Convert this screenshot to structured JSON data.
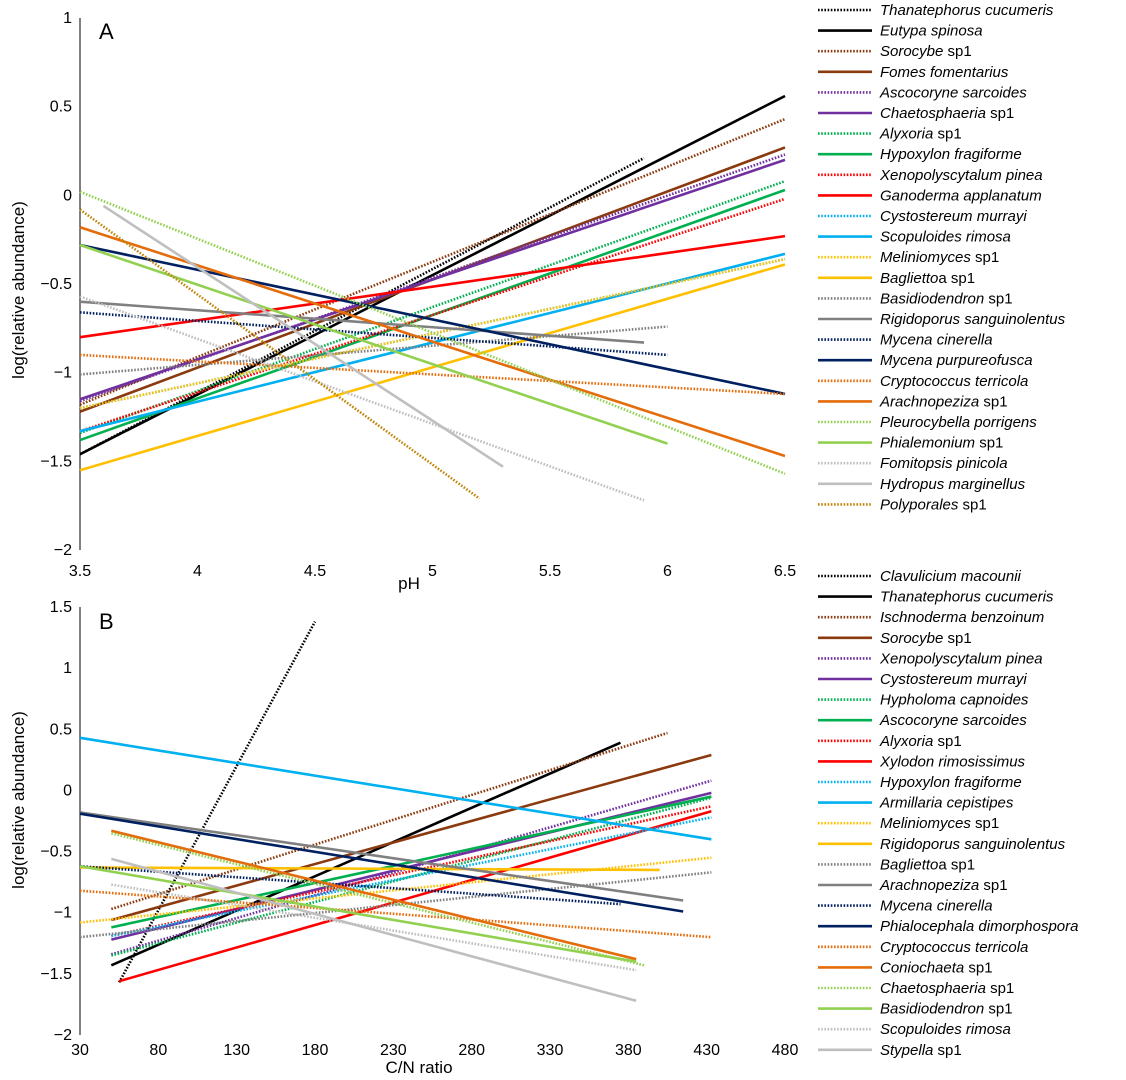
{
  "chart_data": [
    {
      "type": "line",
      "panel_label": "A",
      "xlabel": "pH",
      "ylabel": "log(relative abundance)",
      "xlim": [
        3.5,
        6.5
      ],
      "ylim": [
        -2,
        1
      ],
      "xticks": [
        "3.5",
        "4",
        "4.5",
        "5",
        "5.5",
        "6",
        "6.5"
      ],
      "yticks": [
        "−2",
        "−1.5",
        "−1",
        "−0.5",
        "0",
        "0.5",
        "1"
      ],
      "grid": false,
      "legend_position": "right",
      "series": [
        {
          "name": "Thanatephorus cucumeris",
          "italic": "Thanatephorus cucumeris",
          "suffix": "",
          "color": "#000000",
          "dash": "dotted",
          "points": [
            [
              3.5,
              -1.46
            ],
            [
              5.9,
              0.21
            ]
          ]
        },
        {
          "name": "Eutypa spinosa",
          "italic": "Eutypa spinosa",
          "suffix": "",
          "color": "#000000",
          "dash": "solid",
          "points": [
            [
              3.5,
              -1.46
            ],
            [
              6.5,
              0.56
            ]
          ]
        },
        {
          "name": "Sorocybe sp1",
          "italic": "Sorocybe",
          "suffix": " sp1",
          "color": "#8B3A0F",
          "dash": "dotted",
          "points": [
            [
              3.5,
              -1.18
            ],
            [
              6.5,
              0.43
            ]
          ]
        },
        {
          "name": "Fomes fomentarius",
          "italic": "Fomes fomentarius",
          "suffix": "",
          "color": "#8B3A0F",
          "dash": "solid",
          "points": [
            [
              3.5,
              -1.22
            ],
            [
              6.5,
              0.27
            ]
          ]
        },
        {
          "name": "Ascocoryne sarcoides",
          "italic": "Ascocoryne sarcoides",
          "suffix": "",
          "color": "#7030A0",
          "dash": "dotted",
          "points": [
            [
              3.5,
              -1.16
            ],
            [
              6.5,
              0.23
            ]
          ]
        },
        {
          "name": "Chaetosphaeria sp1",
          "italic": "Chaetosphaeria",
          "suffix": " sp1",
          "color": "#7030A0",
          "dash": "solid",
          "points": [
            [
              3.5,
              -1.15
            ],
            [
              6.5,
              0.2
            ]
          ]
        },
        {
          "name": "Alyxoria sp1",
          "italic": "Alyxoria",
          "suffix": " sp1",
          "color": "#00B050",
          "dash": "dotted",
          "points": [
            [
              3.5,
              -1.34
            ],
            [
              6.5,
              0.08
            ]
          ]
        },
        {
          "name": "Hypoxylon fragiforme",
          "italic": "Hypoxylon fragiforme",
          "suffix": "",
          "color": "#00B050",
          "dash": "solid",
          "points": [
            [
              3.5,
              -1.38
            ],
            [
              6.5,
              0.03
            ]
          ]
        },
        {
          "name": "Xenopolyscytalum pinea",
          "italic": "Xenopolyscytalum pinea",
          "suffix": "",
          "color": "#FF0000",
          "dash": "dotted",
          "points": [
            [
              3.5,
              -1.33
            ],
            [
              6.5,
              -0.02
            ]
          ]
        },
        {
          "name": "Ganoderma applanatum",
          "italic": "Ganoderma applanatum",
          "suffix": "",
          "color": "#FF0000",
          "dash": "solid",
          "points": [
            [
              3.5,
              -0.8
            ],
            [
              6.5,
              -0.23
            ]
          ]
        },
        {
          "name": "Cystostereum murrayi",
          "italic": "Cystostereum murrayi",
          "suffix": "",
          "color": "#00B0F0",
          "dash": "dotted",
          "points": [
            [
              3.5,
              -1.2
            ],
            [
              6.5,
              -0.36
            ]
          ]
        },
        {
          "name": "Scopuloides rimosa",
          "italic": "Scopuloides rimosa",
          "suffix": "",
          "color": "#00B0F0",
          "dash": "solid",
          "points": [
            [
              3.5,
              -1.33
            ],
            [
              6.5,
              -0.33
            ]
          ]
        },
        {
          "name": "Meliniomyces sp1",
          "italic": "Meliniomyces",
          "suffix": " sp1",
          "color": "#FFC000",
          "dash": "dotted",
          "points": [
            [
              3.5,
              -1.2
            ],
            [
              6.5,
              -0.36
            ]
          ]
        },
        {
          "name": "Baglietto sp1",
          "italic": "Baglietto",
          "suffix": "a sp1",
          "color": "#FFC000",
          "dash": "solid",
          "points": [
            [
              3.5,
              -1.55
            ],
            [
              6.5,
              -0.39
            ]
          ]
        },
        {
          "name": "Basidiodendron sp1",
          "italic": "Basidiodendron",
          "suffix": " sp1",
          "color": "#808080",
          "dash": "dotted",
          "points": [
            [
              3.5,
              -1.01
            ],
            [
              6.0,
              -0.74
            ]
          ]
        },
        {
          "name": "Rigidoporus sanguinolentus",
          "italic": "Rigidoporus sanguinolentus",
          "suffix": "",
          "color": "#808080",
          "dash": "solid",
          "points": [
            [
              3.5,
              -0.6
            ],
            [
              5.9,
              -0.83
            ]
          ]
        },
        {
          "name": "Mycena cinerella",
          "italic": "Mycena cinerella",
          "suffix": "",
          "color": "#002060",
          "dash": "dotted",
          "points": [
            [
              3.5,
              -0.66
            ],
            [
              6.0,
              -0.9
            ]
          ]
        },
        {
          "name": "Mycena purpureofusca",
          "italic": "Mycena purpureofusca",
          "suffix": "",
          "color": "#002060",
          "dash": "solid",
          "points": [
            [
              3.5,
              -0.28
            ],
            [
              6.5,
              -1.12
            ]
          ]
        },
        {
          "name": "Cryptococcus terricola",
          "italic": "Cryptococcus terricola",
          "suffix": "",
          "color": "#E46C0A",
          "dash": "dotted",
          "points": [
            [
              3.5,
              -0.9
            ],
            [
              6.5,
              -1.12
            ]
          ]
        },
        {
          "name": "Arachnopeziza sp1",
          "italic": "Arachnopeziza",
          "suffix": " sp1",
          "color": "#E46C0A",
          "dash": "solid",
          "points": [
            [
              3.5,
              -0.18
            ],
            [
              6.5,
              -1.47
            ]
          ]
        },
        {
          "name": "Pleurocybella porrigens",
          "italic": "Pleurocybella porrigens",
          "suffix": "",
          "color": "#92D050",
          "dash": "dotted",
          "points": [
            [
              3.5,
              0.02
            ],
            [
              6.5,
              -1.57
            ]
          ]
        },
        {
          "name": "Phialemonium sp1",
          "italic": "Phialemonium",
          "suffix": " sp1",
          "color": "#92D050",
          "dash": "solid",
          "points": [
            [
              3.5,
              -0.28
            ],
            [
              6.0,
              -1.4
            ]
          ]
        },
        {
          "name": "Fomitopsis pinicola",
          "italic": "Fomitopsis pinicola",
          "suffix": "",
          "color": "#BFBFBF",
          "dash": "dotted",
          "points": [
            [
              3.5,
              -0.57
            ],
            [
              5.9,
              -1.72
            ]
          ]
        },
        {
          "name": "Hydropus marginellus",
          "italic": "Hydropus marginellus",
          "suffix": "",
          "color": "#BFBFBF",
          "dash": "solid",
          "points": [
            [
              3.6,
              -0.06
            ],
            [
              5.3,
              -1.53
            ]
          ]
        },
        {
          "name": "Polyporales sp1",
          "italic": "Polyporales",
          "suffix": " sp1",
          "color": "#C0860A",
          "dash": "dotted",
          "points": [
            [
              3.5,
              -0.08
            ],
            [
              5.2,
              -1.71
            ]
          ]
        }
      ]
    },
    {
      "type": "line",
      "panel_label": "B",
      "xlabel": "C/N ratio",
      "ylabel": "log(relative abundance)",
      "xlim": [
        30,
        480
      ],
      "ylim": [
        -2,
        1.5
      ],
      "xticks": [
        "30",
        "80",
        "130",
        "180",
        "230",
        "280",
        "330",
        "380",
        "430",
        "480"
      ],
      "yticks": [
        "−2",
        "−1.5",
        "−1",
        "−0.5",
        "0",
        "0.5",
        "1",
        "1.5"
      ],
      "grid": false,
      "legend_position": "right",
      "series": [
        {
          "name": "Clavulicium macounii",
          "italic": "Clavulicium macounii",
          "suffix": "",
          "color": "#000000",
          "dash": "dotted",
          "points": [
            [
              55,
              -1.57
            ],
            [
              180,
              1.38
            ]
          ]
        },
        {
          "name": "Thanatephorus cucumeris",
          "italic": "Thanatephorus cucumeris",
          "suffix": "",
          "color": "#000000",
          "dash": "solid",
          "points": [
            [
              50,
              -1.43
            ],
            [
              375,
              0.39
            ]
          ]
        },
        {
          "name": "Ischnoderma benzoinum",
          "italic": "Ischnoderma benzoinum",
          "suffix": "",
          "color": "#8B3A0F",
          "dash": "dotted",
          "points": [
            [
              50,
              -0.97
            ],
            [
              405,
              0.47
            ]
          ]
        },
        {
          "name": "Sorocybe sp1",
          "italic": "Sorocybe",
          "suffix": " sp1",
          "color": "#8B3A0F",
          "dash": "solid",
          "points": [
            [
              50,
              -1.06
            ],
            [
              433,
              0.29
            ]
          ]
        },
        {
          "name": "Xenopolyscytalum pinea",
          "italic": "Xenopolyscytalum pinea",
          "suffix": "",
          "color": "#7030A0",
          "dash": "dotted",
          "points": [
            [
              50,
              -1.34
            ],
            [
              433,
              0.08
            ]
          ]
        },
        {
          "name": "Cystostereum murrayi",
          "italic": "Cystostereum murrayi",
          "suffix": "",
          "color": "#7030A0",
          "dash": "solid",
          "points": [
            [
              50,
              -1.22
            ],
            [
              433,
              -0.02
            ]
          ]
        },
        {
          "name": "Hypholoma capnoides",
          "italic": "Hypholoma capnoides",
          "suffix": "",
          "color": "#00B050",
          "dash": "dotted",
          "points": [
            [
              50,
              -1.35
            ],
            [
              433,
              -0.06
            ]
          ]
        },
        {
          "name": "Ascocoryne sarcoides",
          "italic": "Ascocoryne sarcoides",
          "suffix": "",
          "color": "#00B050",
          "dash": "solid",
          "points": [
            [
              50,
              -1.12
            ],
            [
              433,
              -0.05
            ]
          ]
        },
        {
          "name": "Alyxoria sp1",
          "italic": "Alyxoria",
          "suffix": " sp1",
          "color": "#FF0000",
          "dash": "dotted",
          "points": [
            [
              50,
              -1.19
            ],
            [
              433,
              -0.13
            ]
          ]
        },
        {
          "name": "Xylodon rimosissimus",
          "italic": "Xylodon rimosissimus",
          "suffix": "",
          "color": "#FF0000",
          "dash": "solid",
          "points": [
            [
              55,
              -1.56
            ],
            [
              433,
              -0.17
            ]
          ]
        },
        {
          "name": "Hypoxylon fragiforme",
          "italic": "Hypoxylon fragiforme",
          "suffix": "",
          "color": "#00B0F0",
          "dash": "dotted",
          "points": [
            [
              50,
              -1.19
            ],
            [
              433,
              -0.22
            ]
          ]
        },
        {
          "name": "Armillaria cepistipes",
          "italic": "Armillaria cepistipes",
          "suffix": "",
          "color": "#00B0F0",
          "dash": "solid",
          "points": [
            [
              30,
              0.43
            ],
            [
              433,
              -0.4
            ]
          ]
        },
        {
          "name": "Meliniomyces sp1",
          "italic": "Meliniomyces",
          "suffix": " sp1",
          "color": "#FFC000",
          "dash": "dotted",
          "points": [
            [
              30,
              -1.08
            ],
            [
              433,
              -0.55
            ]
          ]
        },
        {
          "name": "Rigidoporus sanguinolentus",
          "italic": "Rigidoporus sanguinolentus",
          "suffix": "",
          "color": "#FFC000",
          "dash": "solid",
          "points": [
            [
              30,
              -0.63
            ],
            [
              400,
              -0.65
            ]
          ]
        },
        {
          "name": "Baglietto sp1",
          "italic": "Baglietto",
          "suffix": "a sp1",
          "color": "#808080",
          "dash": "dotted",
          "points": [
            [
              30,
              -1.2
            ],
            [
              433,
              -0.67
            ]
          ]
        },
        {
          "name": "Arachnopeziza sp1",
          "italic": "Arachnopeziza",
          "suffix": " sp1",
          "color": "#808080",
          "dash": "solid",
          "points": [
            [
              30,
              -0.18
            ],
            [
              415,
              -0.9
            ]
          ]
        },
        {
          "name": "Mycena cinerella",
          "italic": "Mycena cinerella",
          "suffix": "",
          "color": "#002060",
          "dash": "dotted",
          "points": [
            [
              30,
              -0.62
            ],
            [
              375,
              -0.93
            ]
          ]
        },
        {
          "name": "Phialocephala dimorphospora",
          "italic": "Phialocephala dimorphospora",
          "suffix": "",
          "color": "#002060",
          "dash": "solid",
          "points": [
            [
              30,
              -0.19
            ],
            [
              415,
              -0.99
            ]
          ]
        },
        {
          "name": "Cryptococcus terricola",
          "italic": "Cryptococcus terricola",
          "suffix": "",
          "color": "#E46C0A",
          "dash": "dotted",
          "points": [
            [
              30,
              -0.82
            ],
            [
              433,
              -1.2
            ]
          ]
        },
        {
          "name": "Coniochaeta sp1",
          "italic": "Coniochaeta",
          "suffix": " sp1",
          "color": "#E46C0A",
          "dash": "solid",
          "points": [
            [
              50,
              -0.33
            ],
            [
              385,
              -1.38
            ]
          ]
        },
        {
          "name": "Chaetosphaeria sp1",
          "italic": "Chaetosphaeria",
          "suffix": " sp1",
          "color": "#92D050",
          "dash": "dotted",
          "points": [
            [
              50,
              -0.35
            ],
            [
              390,
              -1.43
            ]
          ]
        },
        {
          "name": "Basidiodendron sp1",
          "italic": "Basidiodendron",
          "suffix": " sp1",
          "color": "#92D050",
          "dash": "solid",
          "points": [
            [
              30,
              -0.62
            ],
            [
              385,
              -1.4
            ]
          ]
        },
        {
          "name": "Scopuloides rimosa",
          "italic": "Scopuloides rimosa",
          "suffix": "",
          "color": "#BFBFBF",
          "dash": "dotted",
          "points": [
            [
              50,
              -0.77
            ],
            [
              385,
              -1.47
            ]
          ]
        },
        {
          "name": "Stypella sp1",
          "italic": "Stypella",
          "suffix": " sp1",
          "color": "#BFBFBF",
          "dash": "solid",
          "points": [
            [
              50,
              -0.56
            ],
            [
              385,
              -1.72
            ]
          ]
        }
      ]
    }
  ]
}
